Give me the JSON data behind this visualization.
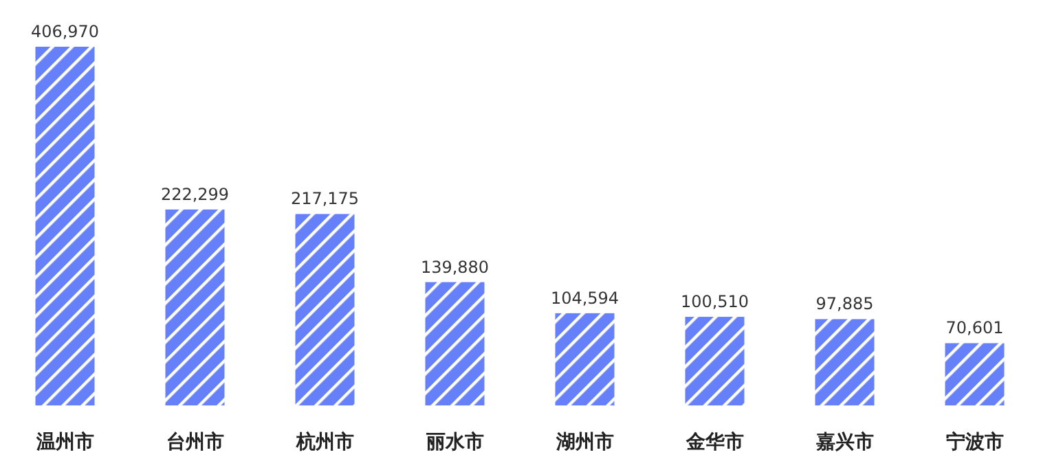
{
  "chart_data": {
    "type": "bar",
    "categories": [
      "温州市",
      "台州市",
      "杭州市",
      "丽水市",
      "湖州市",
      "金华市",
      "嘉兴市",
      "宁波市"
    ],
    "values": [
      406970,
      222299,
      217175,
      139880,
      104594,
      100510,
      97885,
      70601
    ],
    "value_labels": [
      "406,970",
      "222,299",
      "217,175",
      "139,880",
      "104,594",
      "100,510",
      "97,885",
      "70,601"
    ],
    "color": "#6680fa"
  }
}
